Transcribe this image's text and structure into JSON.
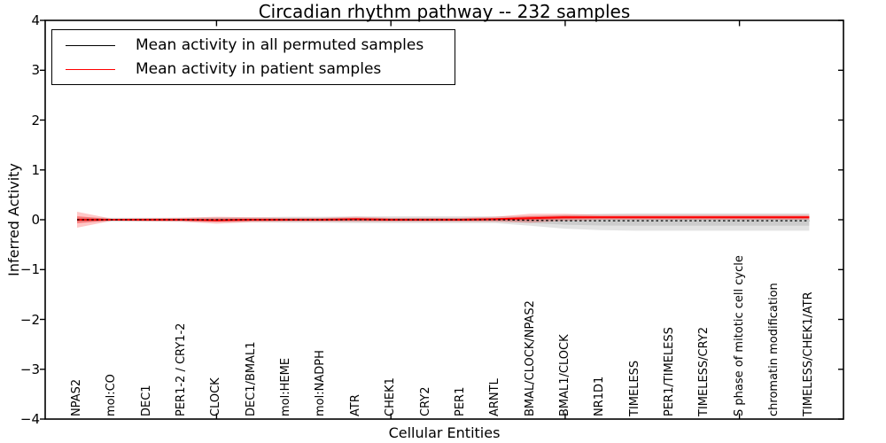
{
  "title": "Circadian rhythm pathway -- 232 samples",
  "chart_data": {
    "type": "line",
    "title": "Circadian rhythm pathway -- 232 samples",
    "xlabel": "Cellular Entities",
    "ylabel": "Inferred Activity",
    "ylim": [
      -4,
      4
    ],
    "yticks": [
      4,
      3,
      2,
      1,
      0,
      -1,
      -2,
      -3,
      -4
    ],
    "xtick_mark_indices": [
      4,
      9,
      14,
      19
    ],
    "grid": false,
    "legend_position": "upper left",
    "categories": [
      "NPAS2",
      "mol:CO",
      "DEC1",
      "PER1-2 / CRY1-2",
      "CLOCK",
      "DEC1/BMAL1",
      "mol:HEME",
      "mol:NADPH",
      "ATR",
      "CHEK1",
      "CRY2",
      "PER1",
      "ARNTL",
      "BMAL/CLOCK/NPAS2",
      "BMAL1/CLOCK",
      "NR1D1",
      "TIMELESS",
      "PER1/TIMELESS",
      "TIMELESS/CRY2",
      "S phase of mitotic cell cycle",
      "chromatin modification",
      "TIMELESS/CHEK1/ATR"
    ],
    "series": [
      {
        "name": "Mean activity in all permuted samples",
        "color": "#000000",
        "band_color": "#999999",
        "mean": [
          0,
          0,
          0,
          0,
          0,
          0,
          0,
          0,
          0,
          0,
          0,
          0,
          0,
          -0.01,
          -0.02,
          -0.02,
          -0.02,
          -0.02,
          -0.02,
          -0.02,
          -0.02,
          -0.02
        ],
        "std_upper": [
          0.05,
          0.04,
          0.04,
          0.04,
          0.05,
          0.05,
          0.06,
          0.06,
          0.07,
          0.07,
          0.07,
          0.07,
          0.07,
          0.09,
          0.12,
          0.14,
          0.15,
          0.15,
          0.15,
          0.15,
          0.15,
          0.15
        ],
        "std_lower": [
          0.05,
          0.04,
          0.04,
          0.04,
          0.05,
          0.05,
          0.06,
          0.06,
          0.07,
          0.07,
          0.07,
          0.07,
          0.07,
          0.11,
          0.16,
          0.19,
          0.2,
          0.2,
          0.2,
          0.2,
          0.2,
          0.2
        ]
      },
      {
        "name": "Mean activity in patient samples",
        "color": "#ff0000",
        "band_color": "#ff0000",
        "mean": [
          0,
          0,
          0,
          0,
          -0.01,
          0,
          0,
          0,
          0.01,
          0,
          0,
          0,
          0.01,
          0.03,
          0.05,
          0.05,
          0.05,
          0.05,
          0.05,
          0.05,
          0.05,
          0.05
        ],
        "std_upper": [
          0.16,
          0.02,
          0.03,
          0.04,
          0.07,
          0.05,
          0.04,
          0.04,
          0.05,
          0.04,
          0.04,
          0.04,
          0.05,
          0.09,
          0.07,
          0.05,
          0.05,
          0.05,
          0.05,
          0.05,
          0.05,
          0.05
        ],
        "std_lower": [
          0.16,
          0.02,
          0.03,
          0.04,
          0.07,
          0.05,
          0.04,
          0.04,
          0.05,
          0.04,
          0.04,
          0.04,
          0.05,
          0.09,
          0.07,
          0.05,
          0.05,
          0.05,
          0.05,
          0.05,
          0.05,
          0.05
        ]
      }
    ]
  }
}
